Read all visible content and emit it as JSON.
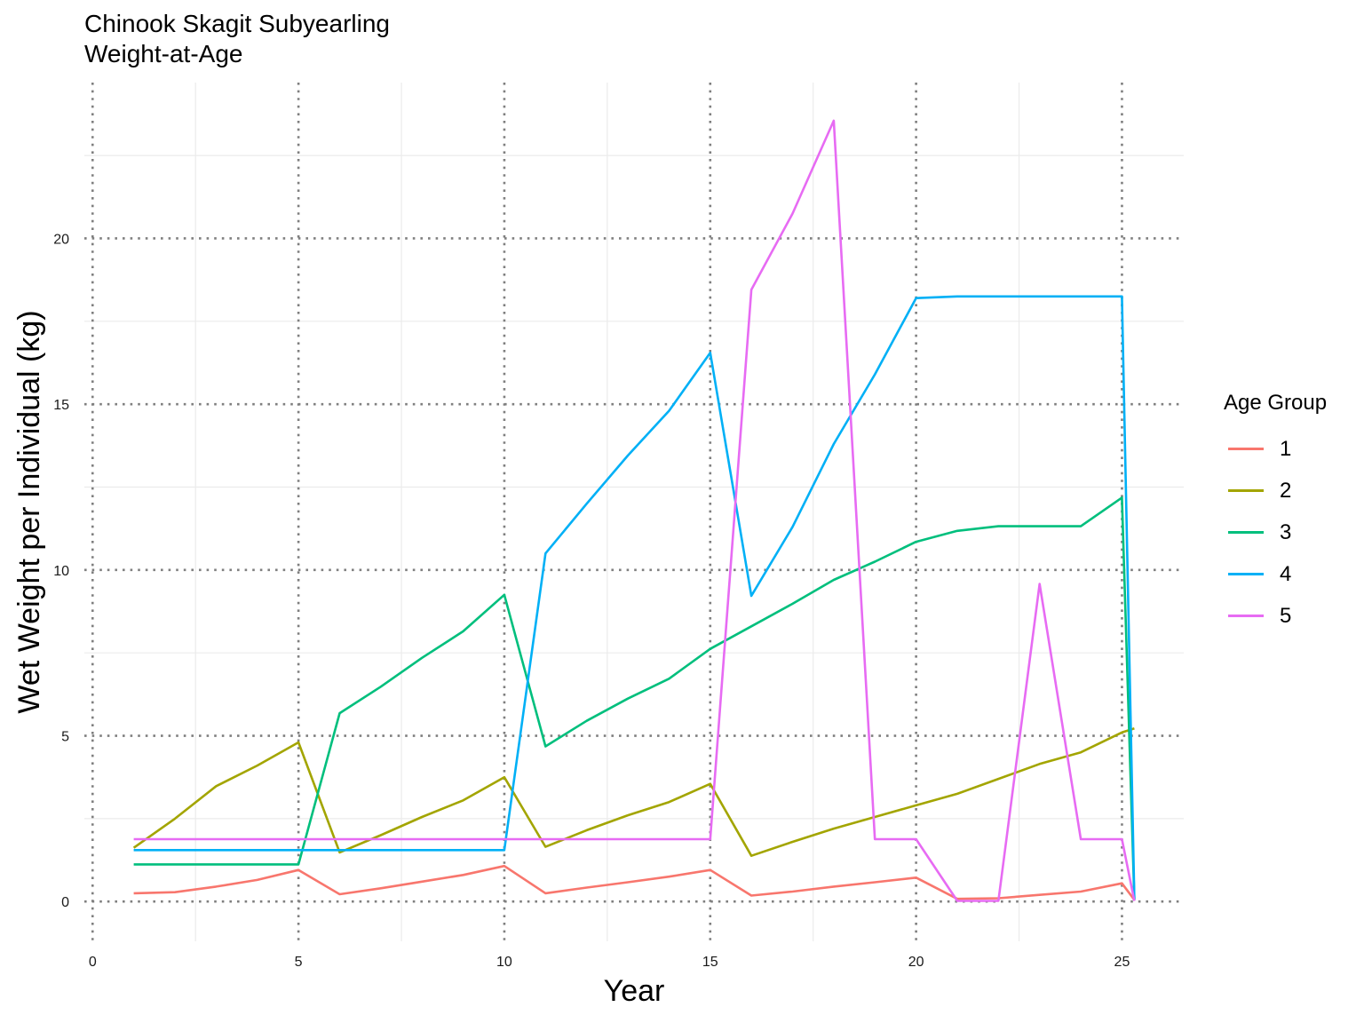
{
  "chart_data": {
    "type": "line",
    "title": "Chinook Skagit Subyearling",
    "subtitle": "Weight-at-Age",
    "xlabel": "Year",
    "ylabel": "Wet Weight per Individual (kg)",
    "xlim": [
      -0.2,
      26.5
    ],
    "ylim": [
      -1.2,
      24.7
    ],
    "x_ticks": [
      0,
      5,
      10,
      15,
      20,
      25
    ],
    "y_ticks": [
      0,
      5,
      10,
      15,
      20
    ],
    "grid": true,
    "legend_title": "Age Group",
    "legend_position": "right",
    "x": [
      1,
      2,
      3,
      4,
      5,
      6,
      7,
      8,
      9,
      10,
      11,
      12,
      13,
      14,
      15,
      16,
      17,
      18,
      19,
      20,
      21,
      22,
      23,
      24,
      25,
      25.3
    ],
    "series": [
      {
        "name": "1",
        "color": "#F8766D",
        "values": [
          0.25,
          0.28,
          0.45,
          0.65,
          0.95,
          0.22,
          0.4,
          0.6,
          0.8,
          1.07,
          0.25,
          0.42,
          0.58,
          0.75,
          0.95,
          0.18,
          0.3,
          0.45,
          0.58,
          0.72,
          0.08,
          0.1,
          0.2,
          0.3,
          0.55,
          0.05
        ]
      },
      {
        "name": "2",
        "color": "#A3A500",
        "values": [
          1.62,
          2.5,
          3.48,
          4.1,
          4.8,
          1.48,
          2.0,
          2.55,
          3.05,
          3.75,
          1.65,
          2.15,
          2.6,
          3.0,
          3.55,
          1.38,
          1.8,
          2.2,
          2.55,
          2.9,
          3.25,
          3.7,
          4.15,
          4.5,
          5.1,
          5.22
        ]
      },
      {
        "name": "3",
        "color": "#00BF7D",
        "values": [
          1.12,
          1.12,
          1.12,
          1.12,
          1.12,
          5.68,
          6.48,
          7.35,
          8.15,
          9.25,
          4.68,
          5.45,
          6.12,
          6.72,
          7.62,
          8.3,
          8.98,
          9.7,
          10.25,
          10.85,
          11.18,
          11.32,
          11.32,
          11.32,
          12.18,
          0.05
        ]
      },
      {
        "name": "4",
        "color": "#00B0F6",
        "values": [
          1.55,
          1.55,
          1.55,
          1.55,
          1.55,
          1.55,
          1.55,
          1.55,
          1.55,
          1.55,
          10.5,
          12.0,
          13.45,
          14.8,
          16.55,
          9.22,
          11.3,
          13.8,
          15.9,
          18.2,
          18.25,
          18.25,
          18.25,
          18.25,
          18.25,
          0.05
        ]
      },
      {
        "name": "5",
        "color": "#E76BF3",
        "values": [
          1.88,
          1.88,
          1.88,
          1.88,
          1.88,
          1.88,
          1.88,
          1.88,
          1.88,
          1.88,
          1.88,
          1.88,
          1.88,
          1.88,
          1.88,
          18.45,
          20.75,
          23.55,
          1.88,
          1.88,
          0.02,
          0.02,
          9.58,
          1.88,
          1.88,
          0.02
        ]
      }
    ]
  }
}
